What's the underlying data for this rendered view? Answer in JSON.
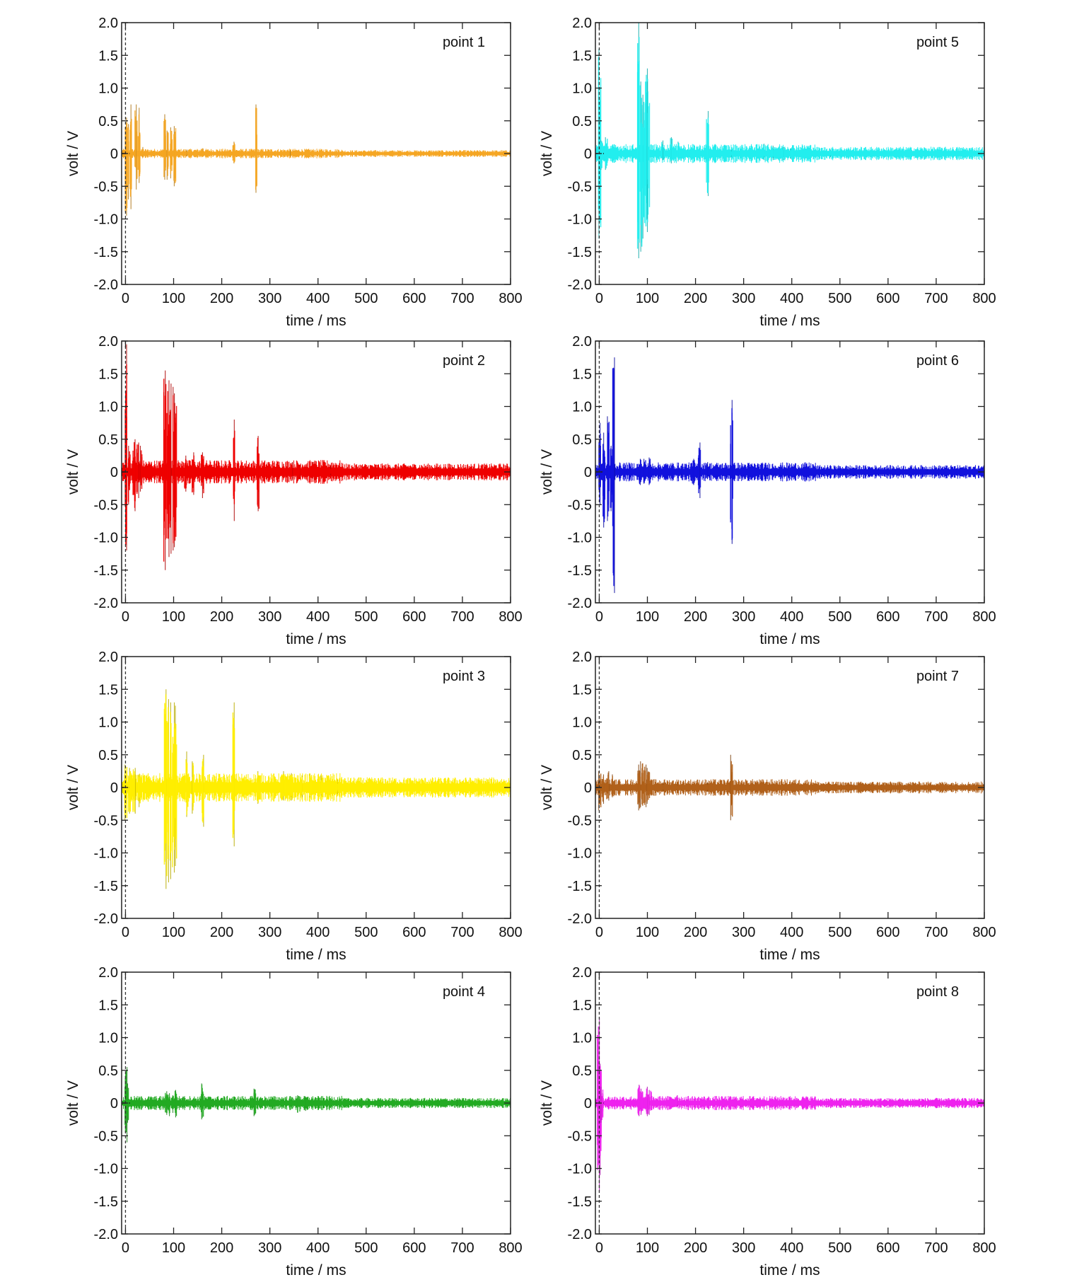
{
  "chart_data": [
    {
      "type": "line",
      "label": "point 1",
      "xlabel": "time / ms",
      "ylabel": "volt / V",
      "xlim": [
        -8,
        800
      ],
      "ylim": [
        -2.0,
        2.0
      ],
      "xticks": [
        0,
        100,
        200,
        300,
        400,
        500,
        600,
        700,
        800
      ],
      "yticks": [
        "2.0",
        "1.5",
        "1.0",
        "0.5",
        "0",
        "-0.5",
        "-1.0",
        "-1.5",
        "-2.0"
      ],
      "trigger_marker_x": 0,
      "color": "#f5a623",
      "baseline_noise": 0.02,
      "spikes": [
        {
          "x": 1,
          "pos": 0.55,
          "neg": -0.95
        },
        {
          "x": 5,
          "pos": 0.45,
          "neg": -0.7
        },
        {
          "x": 12,
          "pos": 0.75,
          "neg": -0.85
        },
        {
          "x": 22,
          "pos": 0.75,
          "neg": -0.55
        },
        {
          "x": 28,
          "pos": 0.7,
          "neg": -0.45
        },
        {
          "x": 35,
          "pos": 0.1,
          "neg": -0.05
        },
        {
          "x": 82,
          "pos": 0.6,
          "neg": -0.4
        },
        {
          "x": 88,
          "pos": 0.35,
          "neg": -0.4
        },
        {
          "x": 95,
          "pos": 0.4,
          "neg": -0.38
        },
        {
          "x": 103,
          "pos": 0.42,
          "neg": -0.5
        },
        {
          "x": 130,
          "pos": 0.06,
          "neg": -0.04
        },
        {
          "x": 160,
          "pos": 0.08,
          "neg": -0.05
        },
        {
          "x": 225,
          "pos": 0.18,
          "neg": -0.15
        },
        {
          "x": 272,
          "pos": 0.75,
          "neg": -0.6
        },
        {
          "x": 340,
          "pos": 0.05,
          "neg": -0.04
        }
      ]
    },
    {
      "type": "line",
      "label": "point 2",
      "xlabel": "time / ms",
      "ylabel": "volt / V",
      "xlim": [
        -8,
        800
      ],
      "ylim": [
        -2.0,
        2.0
      ],
      "xticks": [
        0,
        100,
        200,
        300,
        400,
        500,
        600,
        700,
        800
      ],
      "yticks": [
        "2.0",
        "1.5",
        "1.0",
        "0.5",
        "0",
        "-0.5",
        "-1.0",
        "-1.5",
        "-2.0"
      ],
      "trigger_marker_x": 0,
      "color": "#ee0000",
      "baseline_noise": 0.05,
      "spikes": [
        {
          "x": 1,
          "pos": 1.95,
          "neg": -1.2
        },
        {
          "x": 8,
          "pos": 0.4,
          "neg": -0.5
        },
        {
          "x": 18,
          "pos": 0.5,
          "neg": -0.6
        },
        {
          "x": 25,
          "pos": 0.45,
          "neg": -0.4
        },
        {
          "x": 32,
          "pos": 0.4,
          "neg": -0.3
        },
        {
          "x": 82,
          "pos": 1.55,
          "neg": -1.5
        },
        {
          "x": 88,
          "pos": 1.4,
          "neg": -1.3
        },
        {
          "x": 93,
          "pos": 1.35,
          "neg": -1.25
        },
        {
          "x": 100,
          "pos": 1.3,
          "neg": -1.2
        },
        {
          "x": 104,
          "pos": 1.2,
          "neg": -1.15
        },
        {
          "x": 125,
          "pos": 0.25,
          "neg": -0.3
        },
        {
          "x": 140,
          "pos": 0.3,
          "neg": -0.35
        },
        {
          "x": 160,
          "pos": 0.3,
          "neg": -0.4
        },
        {
          "x": 225,
          "pos": 0.8,
          "neg": -0.75
        },
        {
          "x": 275,
          "pos": 0.55,
          "neg": -0.6
        },
        {
          "x": 330,
          "pos": 0.12,
          "neg": -0.1
        },
        {
          "x": 345,
          "pos": 0.15,
          "neg": -0.12
        },
        {
          "x": 360,
          "pos": 0.1,
          "neg": -0.1
        },
        {
          "x": 390,
          "pos": 0.15,
          "neg": -0.1
        },
        {
          "x": 425,
          "pos": 0.1,
          "neg": -0.05
        }
      ]
    },
    {
      "type": "line",
      "label": "point 3",
      "xlabel": "time / ms",
      "ylabel": "volt / V",
      "xlim": [
        -8,
        800
      ],
      "ylim": [
        -2.0,
        2.0
      ],
      "xticks": [
        0,
        100,
        200,
        300,
        400,
        500,
        600,
        700,
        800
      ],
      "yticks": [
        "2.0",
        "1.5",
        "1.0",
        "0.5",
        "0",
        "-0.5",
        "-1.0",
        "-1.5",
        "-2.0"
      ],
      "trigger_marker_x": 0,
      "color": "#ffee00",
      "baseline_noise": 0.06,
      "spikes": [
        {
          "x": 1,
          "pos": 0.35,
          "neg": -0.5
        },
        {
          "x": 8,
          "pos": 0.3,
          "neg": -0.4
        },
        {
          "x": 18,
          "pos": 0.3,
          "neg": -0.4
        },
        {
          "x": 28,
          "pos": 0.2,
          "neg": -0.3
        },
        {
          "x": 82,
          "pos": 1.5,
          "neg": -1.55
        },
        {
          "x": 88,
          "pos": 1.35,
          "neg": -1.45
        },
        {
          "x": 94,
          "pos": 1.3,
          "neg": -1.4
        },
        {
          "x": 100,
          "pos": 1.3,
          "neg": -1.3
        },
        {
          "x": 104,
          "pos": 1.25,
          "neg": -1.2
        },
        {
          "x": 128,
          "pos": 0.55,
          "neg": -0.45
        },
        {
          "x": 140,
          "pos": 0.4,
          "neg": -0.4
        },
        {
          "x": 160,
          "pos": 0.5,
          "neg": -0.6
        },
        {
          "x": 225,
          "pos": 1.3,
          "neg": -0.9
        },
        {
          "x": 275,
          "pos": 0.25,
          "neg": -0.25
        },
        {
          "x": 330,
          "pos": 0.25,
          "neg": -0.2
        },
        {
          "x": 345,
          "pos": 0.22,
          "neg": -0.2
        },
        {
          "x": 365,
          "pos": 0.18,
          "neg": -0.15
        },
        {
          "x": 385,
          "pos": 0.2,
          "neg": -0.15
        },
        {
          "x": 405,
          "pos": 0.18,
          "neg": -0.12
        },
        {
          "x": 440,
          "pos": 0.12,
          "neg": -0.1
        }
      ]
    },
    {
      "type": "line",
      "label": "point 4",
      "xlabel": "time / ms",
      "ylabel": "volt / V",
      "xlim": [
        -8,
        800
      ],
      "ylim": [
        -2.0,
        2.0
      ],
      "xticks": [
        0,
        100,
        200,
        300,
        400,
        500,
        600,
        700,
        800
      ],
      "yticks": [
        "2.0",
        "1.5",
        "1.0",
        "0.5",
        "0",
        "-0.5",
        "-1.0",
        "-1.5",
        "-2.0"
      ],
      "trigger_marker_x": 0,
      "color": "#22aa22",
      "baseline_noise": 0.03,
      "spikes": [
        {
          "x": 1,
          "pos": 0.55,
          "neg": -0.6
        },
        {
          "x": 5,
          "pos": 0.3,
          "neg": -0.3
        },
        {
          "x": 85,
          "pos": 0.18,
          "neg": -0.18
        },
        {
          "x": 90,
          "pos": 0.15,
          "neg": -0.2
        },
        {
          "x": 100,
          "pos": 0.12,
          "neg": -0.15
        },
        {
          "x": 105,
          "pos": 0.2,
          "neg": -0.22
        },
        {
          "x": 120,
          "pos": 0.1,
          "neg": -0.08
        },
        {
          "x": 160,
          "pos": 0.3,
          "neg": -0.25
        },
        {
          "x": 268,
          "pos": 0.22,
          "neg": -0.2
        },
        {
          "x": 360,
          "pos": 0.12,
          "neg": -0.15
        },
        {
          "x": 375,
          "pos": 0.1,
          "neg": -0.12
        },
        {
          "x": 690,
          "pos": 0.05,
          "neg": -0.05
        }
      ]
    },
    {
      "type": "line",
      "label": "point 5",
      "xlabel": "time / ms",
      "ylabel": "volt / V",
      "xlim": [
        -8,
        800
      ],
      "ylim": [
        -2.0,
        2.0
      ],
      "xticks": [
        0,
        100,
        200,
        300,
        400,
        500,
        600,
        700,
        800
      ],
      "yticks": [
        "2.0",
        "1.5",
        "1.0",
        "0.5",
        "0",
        "-0.5",
        "-1.0",
        "-1.5",
        "-2.0"
      ],
      "trigger_marker_x": 0,
      "color": "#22eeee",
      "baseline_noise": 0.04,
      "spikes": [
        {
          "x": 1,
          "pos": 1.6,
          "neg": -1.3
        },
        {
          "x": 6,
          "pos": 0.2,
          "neg": -0.25
        },
        {
          "x": 15,
          "pos": 0.25,
          "neg": -0.25
        },
        {
          "x": 82,
          "pos": 2.0,
          "neg": -1.6
        },
        {
          "x": 87,
          "pos": 1.1,
          "neg": -1.5
        },
        {
          "x": 92,
          "pos": 0.9,
          "neg": -1.3
        },
        {
          "x": 98,
          "pos": 1.3,
          "neg": -1.2
        },
        {
          "x": 102,
          "pos": 1.1,
          "neg": -1.0
        },
        {
          "x": 130,
          "pos": 0.2,
          "neg": -0.1
        },
        {
          "x": 150,
          "pos": 0.25,
          "neg": -0.15
        },
        {
          "x": 165,
          "pos": 0.18,
          "neg": -0.12
        },
        {
          "x": 225,
          "pos": 0.65,
          "neg": -0.65
        },
        {
          "x": 275,
          "pos": 0.05,
          "neg": -0.05
        },
        {
          "x": 340,
          "pos": 0.15,
          "neg": -0.1
        },
        {
          "x": 360,
          "pos": 0.12,
          "neg": -0.1
        },
        {
          "x": 380,
          "pos": 0.1,
          "neg": -0.1
        },
        {
          "x": 400,
          "pos": 0.08,
          "neg": -0.08
        },
        {
          "x": 480,
          "pos": 0.06,
          "neg": -0.05
        }
      ]
    },
    {
      "type": "line",
      "label": "point 6",
      "xlabel": "time / ms",
      "ylabel": "volt / V",
      "xlim": [
        -8,
        800
      ],
      "ylim": [
        -2.0,
        2.0
      ],
      "xticks": [
        0,
        100,
        200,
        300,
        400,
        500,
        600,
        700,
        800
      ],
      "yticks": [
        "2.0",
        "1.5",
        "1.0",
        "0.5",
        "0",
        "-0.5",
        "-1.0",
        "-1.5",
        "-2.0"
      ],
      "trigger_marker_x": 0,
      "color": "#1111dd",
      "baseline_noise": 0.04,
      "spikes": [
        {
          "x": 2,
          "pos": 0.75,
          "neg": -0.5
        },
        {
          "x": 10,
          "pos": 0.6,
          "neg": -0.85
        },
        {
          "x": 18,
          "pos": 0.85,
          "neg": -0.75
        },
        {
          "x": 25,
          "pos": 0.4,
          "neg": -0.6
        },
        {
          "x": 30,
          "pos": 1.75,
          "neg": -1.85
        },
        {
          "x": 85,
          "pos": 0.2,
          "neg": -0.2
        },
        {
          "x": 95,
          "pos": 0.2,
          "neg": -0.18
        },
        {
          "x": 105,
          "pos": 0.22,
          "neg": -0.2
        },
        {
          "x": 170,
          "pos": 0.05,
          "neg": -0.05
        },
        {
          "x": 195,
          "pos": 0.2,
          "neg": -0.2
        },
        {
          "x": 208,
          "pos": 0.45,
          "neg": -0.4
        },
        {
          "x": 225,
          "pos": 0.15,
          "neg": -0.1
        },
        {
          "x": 275,
          "pos": 1.1,
          "neg": -1.1
        },
        {
          "x": 680,
          "pos": 0.04,
          "neg": -0.03
        }
      ]
    },
    {
      "type": "line",
      "label": "point 7",
      "xlabel": "time / ms",
      "ylabel": "volt / V",
      "xlim": [
        -8,
        800
      ],
      "ylim": [
        -2.0,
        2.0
      ],
      "xticks": [
        0,
        100,
        200,
        300,
        400,
        500,
        600,
        700,
        800
      ],
      "yticks": [
        "2.0",
        "1.5",
        "1.0",
        "0.5",
        "0",
        "-0.5",
        "-1.0",
        "-1.5",
        "-2.0"
      ],
      "trigger_marker_x": 0,
      "color": "#b0601a",
      "baseline_noise": 0.035,
      "spikes": [
        {
          "x": 1,
          "pos": 0.25,
          "neg": -0.35
        },
        {
          "x": 8,
          "pos": 0.2,
          "neg": -0.25
        },
        {
          "x": 18,
          "pos": 0.25,
          "neg": -0.2
        },
        {
          "x": 28,
          "pos": 0.2,
          "neg": -0.15
        },
        {
          "x": 82,
          "pos": 0.35,
          "neg": -0.35
        },
        {
          "x": 88,
          "pos": 0.4,
          "neg": -0.3
        },
        {
          "x": 95,
          "pos": 0.35,
          "neg": -0.3
        },
        {
          "x": 102,
          "pos": 0.3,
          "neg": -0.25
        },
        {
          "x": 135,
          "pos": 0.08,
          "neg": -0.05
        },
        {
          "x": 160,
          "pos": 0.06,
          "neg": -0.05
        },
        {
          "x": 225,
          "pos": 0.08,
          "neg": -0.06
        },
        {
          "x": 275,
          "pos": 0.5,
          "neg": -0.5
        },
        {
          "x": 800,
          "pos": 0.05,
          "neg": -0.04
        }
      ]
    },
    {
      "type": "line",
      "label": "point 8",
      "xlabel": "time / ms",
      "ylabel": "volt / V",
      "xlim": [
        -8,
        800
      ],
      "ylim": [
        -2.0,
        2.0
      ],
      "xticks": [
        0,
        100,
        200,
        300,
        400,
        500,
        600,
        700,
        800
      ],
      "yticks": [
        "2.0",
        "1.5",
        "1.0",
        "0.5",
        "0",
        "-0.5",
        "-1.0",
        "-1.5",
        "-2.0"
      ],
      "trigger_marker_x": 0,
      "color": "#ee22ee",
      "baseline_noise": 0.03,
      "spikes": [
        {
          "x": -2,
          "pos": 1.3,
          "neg": -1.35
        },
        {
          "x": 2,
          "pos": 0.6,
          "neg": -1.1
        },
        {
          "x": 6,
          "pos": 0.25,
          "neg": -0.3
        },
        {
          "x": 82,
          "pos": 0.28,
          "neg": -0.2
        },
        {
          "x": 88,
          "pos": 0.22,
          "neg": -0.18
        },
        {
          "x": 100,
          "pos": 0.25,
          "neg": -0.2
        },
        {
          "x": 106,
          "pos": 0.2,
          "neg": -0.18
        },
        {
          "x": 160,
          "pos": 0.12,
          "neg": -0.05
        },
        {
          "x": 500,
          "pos": 0.06,
          "neg": -0.04
        }
      ]
    }
  ]
}
